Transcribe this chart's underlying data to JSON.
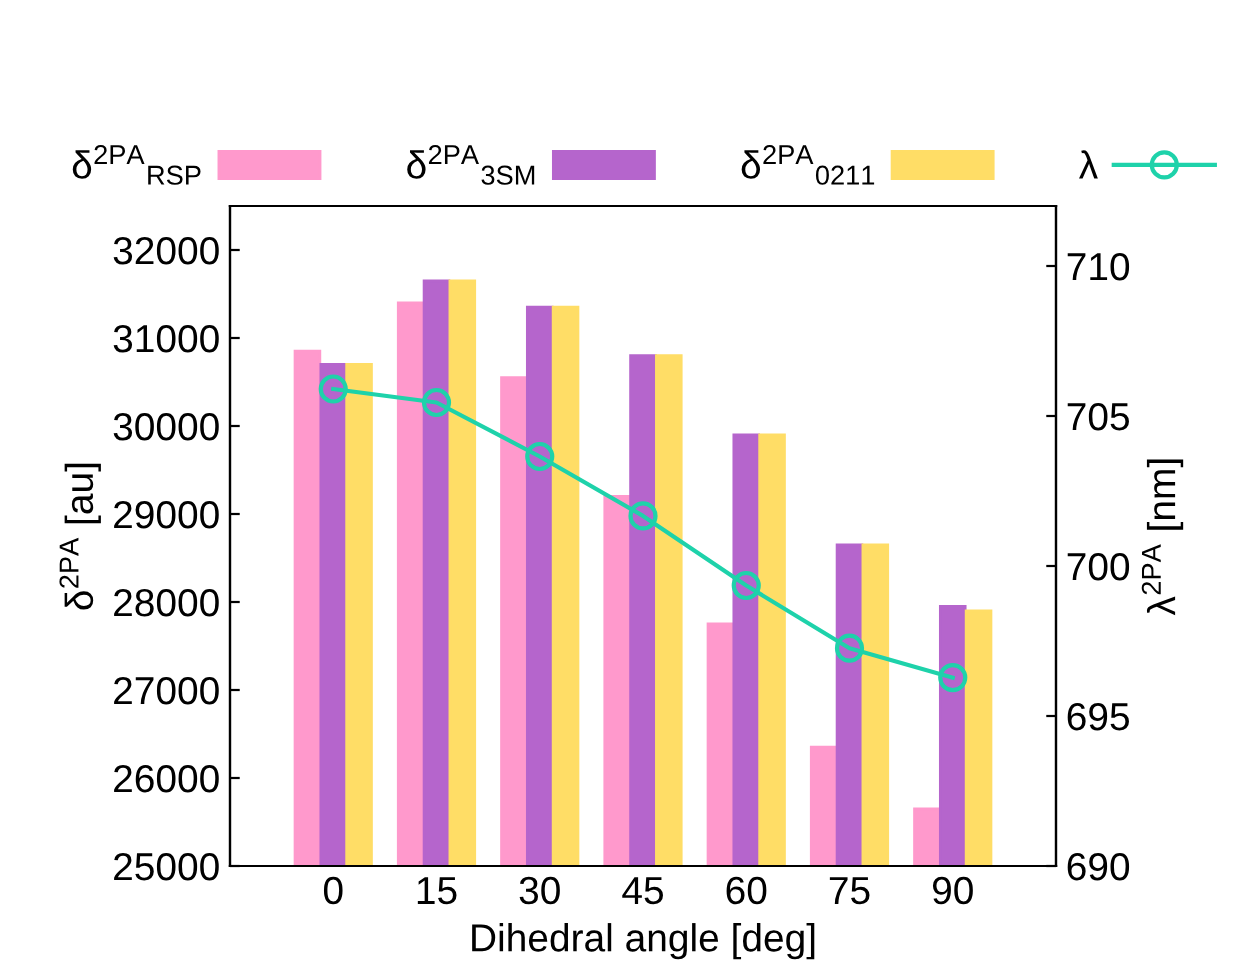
{
  "chart_data": {
    "type": "bar",
    "xlabel": "Dihedral angle [deg]",
    "ylabel": "δ$^{2PA}$ [au]",
    "y2label": "λ$^{2PA}$ [nm]",
    "categories": [
      "0",
      "15",
      "30",
      "45",
      "60",
      "75",
      "90"
    ],
    "series": [
      {
        "name": "δ$^{2PA}$$_{RSP}$",
        "color": "#ff99cc",
        "values": [
          30850,
          31400,
          30550,
          29200,
          27750,
          26350,
          25650
        ]
      },
      {
        "name": "δ$^{2PA}$$_{3SM}$",
        "color": "#b565cc",
        "values": [
          30700,
          31650,
          31350,
          30800,
          29900,
          28650,
          27950
        ]
      },
      {
        "name": "δ$^{2PA}$$_{0211}$",
        "color": "#ffdd66",
        "values": [
          30700,
          31650,
          31350,
          30800,
          29900,
          28650,
          27900
        ]
      },
      {
        "name": "λ",
        "type": "line",
        "axis": "y2",
        "color": "#1ed2aa",
        "marker": "circle",
        "values": [
          705.9,
          705.45,
          703.65,
          701.67,
          699.35,
          697.26,
          696.28
        ]
      }
    ],
    "ylim": [
      25000,
      32500
    ],
    "yticks": [
      25000,
      26000,
      27000,
      28000,
      29000,
      30000,
      31000,
      32000
    ],
    "y2lim": [
      690,
      712
    ],
    "y2ticks": [
      690,
      695,
      700,
      705,
      710
    ],
    "grid": false,
    "legend": "top"
  }
}
